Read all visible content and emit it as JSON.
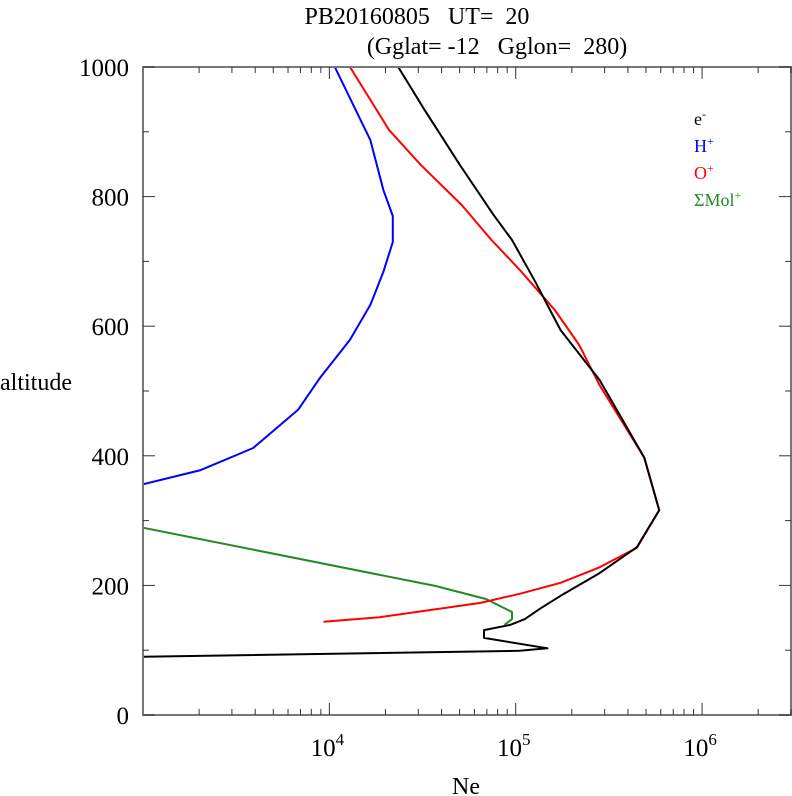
{
  "chart_data": {
    "type": "line",
    "title": "PB20160805   UT=  20",
    "subtitle": "(Gglat= -12   Gglon=  280)",
    "xlabel": "Ne",
    "ylabel": "altitude",
    "xscale": "log",
    "xlim": [
      1000,
      3000000
    ],
    "ylim": [
      0,
      1000
    ],
    "x_tick_labels": [
      {
        "value": 10000,
        "base": "10",
        "exp": "4"
      },
      {
        "value": 100000,
        "base": "10",
        "exp": "5"
      },
      {
        "value": 1000000,
        "base": "10",
        "exp": "6"
      }
    ],
    "y_ticks": [
      0,
      200,
      400,
      600,
      800,
      1000
    ],
    "y_tick_labels": [
      "0",
      "200",
      "400",
      "600",
      "800",
      "1000"
    ],
    "grid": false,
    "legend_position": "top-right",
    "series": [
      {
        "name": "e-",
        "label_base": "e",
        "label_sup": "-",
        "color": "#000000",
        "points": [
          [
            23400,
            1000
          ],
          [
            32400,
            934
          ],
          [
            50100,
            849
          ],
          [
            75900,
            772
          ],
          [
            95500,
            733
          ],
          [
            126000,
            671
          ],
          [
            174000,
            594
          ],
          [
            282000,
            517
          ],
          [
            490000,
            397
          ],
          [
            589000,
            316
          ],
          [
            447000,
            259
          ],
          [
            282000,
            219
          ],
          [
            174000,
            184
          ],
          [
            135000,
            164
          ],
          [
            112000,
            148
          ],
          [
            93300,
            139
          ],
          [
            67600,
            131
          ],
          [
            67600,
            119
          ],
          [
            148000,
            103
          ],
          [
            105000,
            99
          ],
          [
            1000,
            90
          ]
        ]
      },
      {
        "name": "H+",
        "label_base": "H",
        "label_sup": "+",
        "color": "#0000ff",
        "points": [
          [
            10700,
            1000
          ],
          [
            16600,
            887
          ],
          [
            19500,
            810
          ],
          [
            21900,
            770
          ],
          [
            21900,
            730
          ],
          [
            19500,
            684
          ],
          [
            16600,
            633
          ],
          [
            12900,
            579
          ],
          [
            8900,
            520
          ],
          [
            6800,
            471
          ],
          [
            3900,
            412
          ],
          [
            2040,
            378
          ],
          [
            1000,
            356
          ]
        ]
      },
      {
        "name": "O+",
        "label_base": "O",
        "label_sup": "+",
        "color": "#ff0000",
        "points": [
          [
            12900,
            1000
          ],
          [
            20900,
            903
          ],
          [
            30900,
            849
          ],
          [
            51300,
            787
          ],
          [
            74100,
            733
          ],
          [
            105000,
            687
          ],
          [
            162000,
            625
          ],
          [
            219000,
            571
          ],
          [
            282000,
            509
          ],
          [
            490000,
            397
          ],
          [
            589000,
            316
          ],
          [
            447000,
            258
          ],
          [
            282000,
            228
          ],
          [
            174000,
            204
          ],
          [
            105000,
            187
          ],
          [
            64600,
            173
          ],
          [
            38900,
            164
          ],
          [
            18600,
            151
          ],
          [
            9300,
            144
          ]
        ]
      },
      {
        "name": "ΣMol+",
        "label_base": "ΣMol",
        "label_sup": "+",
        "color": "#228b22",
        "points": [
          [
            1000,
            289
          ],
          [
            37200,
            199
          ],
          [
            69200,
            179
          ],
          [
            95500,
            159
          ],
          [
            95500,
            148
          ],
          [
            87100,
            139
          ]
        ]
      }
    ]
  }
}
